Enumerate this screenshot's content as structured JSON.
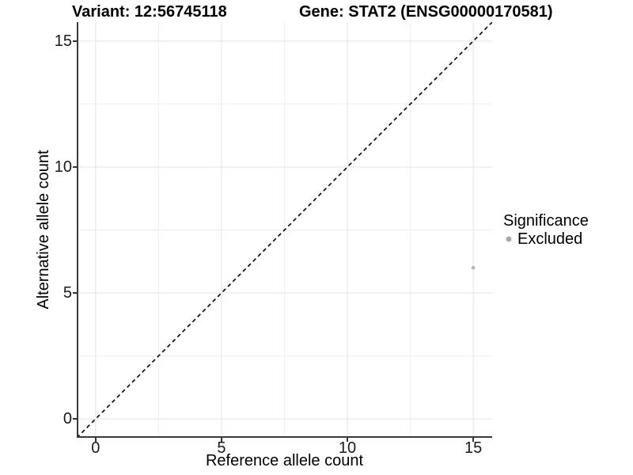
{
  "header": {
    "variant_title": "Variant: 12:56745118",
    "gene_title": "Gene: STAT2 (ENSG00000170581)"
  },
  "axes": {
    "x": {
      "label": "Reference allele count"
    },
    "y": {
      "label": "Alternative allele count"
    }
  },
  "legend": {
    "title": "Significance",
    "items": [
      {
        "label": "Excluded",
        "color": "#a9a9a9"
      }
    ]
  },
  "colors": {
    "background": "#ffffff",
    "grid_major": "#e3e3e3",
    "grid_minor": "#f0f0f0",
    "axis_line": "#3a3a3a",
    "diagonal_line": "#000000",
    "point": "#b7b7b7"
  },
  "chart_data": {
    "type": "scatter",
    "title": "Variant: 12:56745118   Gene: STAT2 (ENSG00000170581)",
    "xlabel": "Reference allele count",
    "ylabel": "Alternative allele count",
    "xlim": [
      -0.75,
      15.75
    ],
    "ylim": [
      -0.75,
      15.75
    ],
    "x_ticks": [
      0,
      5,
      10,
      15
    ],
    "y_ticks": [
      0,
      5,
      10,
      15
    ],
    "grid": {
      "major": true,
      "minor": true
    },
    "legend_position": "right-middle",
    "series": [
      {
        "name": "Excluded",
        "color": "#b7b7b7",
        "marker": "circle",
        "points": [
          {
            "x": 15,
            "y": 6
          }
        ]
      }
    ],
    "reference_line": {
      "kind": "identity",
      "equation": "y = x",
      "style": "dashed",
      "color": "#000000"
    }
  }
}
